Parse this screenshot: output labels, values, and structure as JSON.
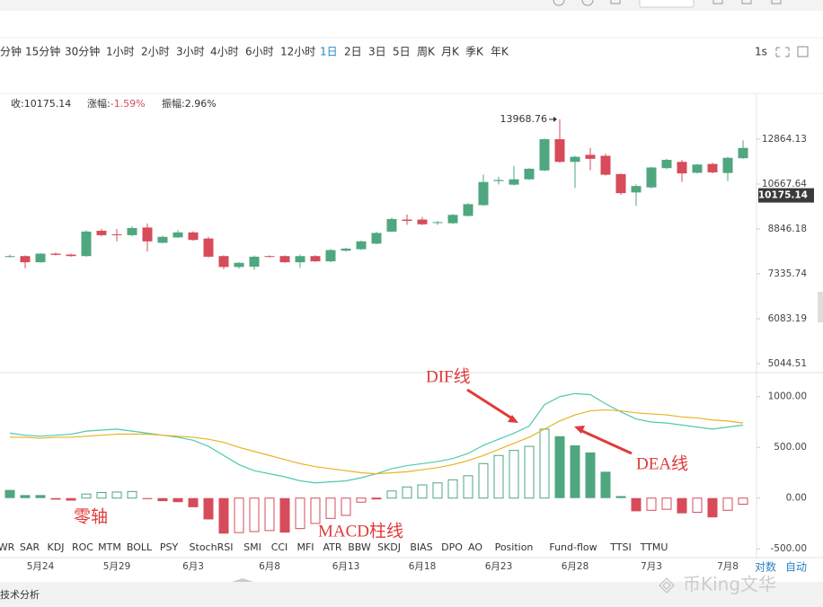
{
  "toolbar": {
    "intervals": [
      "分钟",
      "15分钟",
      "30分钟",
      "1小时",
      "2小时",
      "3小时",
      "4小时",
      "6小时",
      "12小时",
      "1日",
      "2日",
      "3日",
      "5日",
      "周K",
      "月K",
      "季K",
      "年K"
    ],
    "right": "1s"
  },
  "info": [
    {
      "label": "收:",
      "value": "10175.14"
    },
    {
      "label": "涨幅:",
      "value": "-1.59%"
    },
    {
      "label": "振幅:",
      "value": "2.96%"
    }
  ],
  "chart_data": [
    {
      "type": "candlestick",
      "log_scale": true,
      "up_color": "#4ea77f",
      "down_color": "#d74b5a",
      "open": [
        7880,
        7900,
        7700,
        7980,
        7950,
        7900,
        8780,
        8650,
        8620,
        8900,
        8350,
        8540,
        8720,
        8500,
        7900,
        7550,
        7560,
        7900,
        7900,
        7700,
        7900,
        7730,
        8080,
        8130,
        8320,
        8750,
        9200,
        9200,
        9080,
        9060,
        9340,
        9770,
        10800,
        10640,
        10880,
        11290,
        12860,
        11700,
        12050,
        12000,
        11120,
        10300,
        10520,
        11400,
        11700,
        11180,
        11600,
        11170,
        11880
      ],
      "high": [
        7950,
        7920,
        8000,
        8020,
        7980,
        8800,
        8850,
        8850,
        8950,
        9050,
        8600,
        8800,
        8760,
        8560,
        7930,
        7700,
        7920,
        7920,
        7920,
        7950,
        7930,
        8140,
        8180,
        8430,
        8740,
        9280,
        9400,
        9300,
        9150,
        9420,
        9850,
        11100,
        11000,
        11500,
        11400,
        12900,
        13968.76,
        12000,
        12400,
        12100,
        11150,
        10650,
        11460,
        11850,
        11800,
        11600,
        11650,
        11950,
        12800
      ],
      "low": [
        7850,
        7510,
        7680,
        7920,
        7880,
        7880,
        8580,
        8400,
        8580,
        8050,
        8330,
        8520,
        8420,
        7860,
        7480,
        7500,
        7460,
        7860,
        7680,
        7520,
        7710,
        7700,
        8050,
        8110,
        8300,
        8730,
        9000,
        8990,
        9000,
        9030,
        9320,
        9740,
        10650,
        10600,
        10850,
        11250,
        11650,
        10500,
        11300,
        11050,
        10200,
        9750,
        10480,
        11350,
        10770,
        11150,
        11150,
        10800,
        11850
      ],
      "close": [
        7900,
        7700,
        7980,
        7940,
        7900,
        8750,
        8620,
        8630,
        8880,
        8400,
        8560,
        8720,
        8450,
        7880,
        7550,
        7680,
        7880,
        7880,
        7700,
        7900,
        7730,
        8100,
        8150,
        8400,
        8700,
        9220,
        9150,
        9020,
        9100,
        9380,
        9810,
        10760,
        10850,
        10880,
        11370,
        12860,
        11700,
        11950,
        11850,
        11090,
        10270,
        10580,
        11430,
        11800,
        11150,
        11570,
        11200,
        11900,
        12400
      ],
      "last_price": 10175.14,
      "ylim": [
        4860,
        14390
      ],
      "yticks": [
        5044.51,
        6083.19,
        7335.74,
        8846.18,
        10667.64,
        12864.13
      ]
    },
    {
      "type": "macd",
      "categories": [
        null,
        null,
        "5月24",
        null,
        null,
        null,
        null,
        "5月29",
        null,
        null,
        null,
        null,
        "6月3",
        null,
        null,
        null,
        null,
        "6月8",
        null,
        null,
        null,
        null,
        "6月13",
        null,
        null,
        null,
        null,
        "6月18",
        null,
        null,
        null,
        null,
        "6月23",
        null,
        null,
        null,
        null,
        "6月28",
        null,
        null,
        null,
        null,
        "7月3",
        null,
        null,
        null,
        null,
        "7月8",
        null
      ],
      "series": [
        {
          "name": "DIF线",
          "color": "#4fc9b0",
          "values": [
            640,
            620,
            610,
            620,
            630,
            660,
            670,
            680,
            660,
            640,
            620,
            600,
            570,
            510,
            420,
            330,
            270,
            240,
            210,
            170,
            150,
            160,
            170,
            200,
            240,
            290,
            320,
            340,
            360,
            390,
            440,
            520,
            580,
            640,
            710,
            920,
            1000,
            1030,
            1020,
            930,
            850,
            780,
            750,
            740,
            720,
            700,
            680,
            700,
            720
          ]
        },
        {
          "name": "DEA线",
          "color": "#e6b422",
          "values": [
            600,
            600,
            590,
            600,
            600,
            610,
            620,
            630,
            630,
            630,
            620,
            610,
            600,
            580,
            550,
            500,
            460,
            420,
            380,
            340,
            310,
            290,
            270,
            250,
            240,
            250,
            260,
            280,
            300,
            330,
            370,
            420,
            480,
            540,
            600,
            680,
            760,
            820,
            860,
            870,
            860,
            840,
            830,
            820,
            800,
            790,
            770,
            760,
            740
          ]
        }
      ],
      "histogram": {
        "name": "MACD柱线",
        "up_color": "#4ea77f",
        "down_color": "#d74b5a",
        "values": [
          80,
          30,
          30,
          -15,
          -25,
          40,
          55,
          60,
          65,
          -10,
          -30,
          -40,
          -90,
          -210,
          -350,
          -340,
          -330,
          -320,
          -340,
          -300,
          -250,
          -200,
          -170,
          -40,
          -5,
          70,
          110,
          130,
          150,
          180,
          220,
          340,
          420,
          470,
          510,
          680,
          610,
          520,
          450,
          260,
          20,
          -130,
          -120,
          -110,
          -150,
          -140,
          -190,
          -120,
          -60
        ]
      },
      "zero_line_label": "零轴",
      "ylim": [
        -560,
        1210
      ],
      "yticks": [
        {
          "value": -500,
          "label": "-500.00"
        },
        {
          "value": 0,
          "label": "0.00"
        },
        {
          "value": 500,
          "label": "500.00"
        },
        {
          "value": 1000,
          "label": "1000.00"
        }
      ],
      "indicator_tabs": [
        "WR",
        "SAR",
        "KDJ",
        "ROC",
        "MTM",
        "BOLL",
        "PSY",
        "StochRSI",
        "SMI",
        "CCI",
        "MFI",
        "ATR",
        "BBW",
        "SKDJ",
        "BIAS",
        "DPO",
        "AO",
        "Position",
        "Fund-flow",
        "TTSI",
        "TTMU"
      ],
      "axis_options": [
        "对数",
        "自动"
      ]
    }
  ],
  "footer": {
    "left": "技术分析",
    "watermark": "币King文华"
  }
}
